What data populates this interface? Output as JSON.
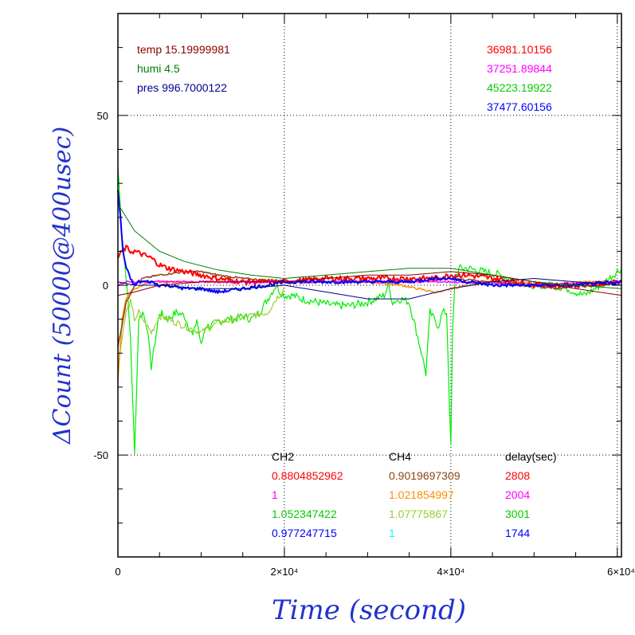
{
  "chart_data": {
    "type": "line",
    "title": "",
    "xlabel": "Time (second)",
    "ylabel": "ΔCount (50000@400usec)",
    "xlim": [
      0,
      60500
    ],
    "ylim": [
      -80,
      80
    ],
    "grid": true,
    "x_ticks": [
      {
        "value": 0,
        "label": "0"
      },
      {
        "value": 20000,
        "label": "2×10⁴"
      },
      {
        "value": 40000,
        "label": "4×10⁴"
      },
      {
        "value": 60000,
        "label": "6×10⁴"
      }
    ],
    "y_ticks": [
      {
        "value": -50,
        "label": "-50"
      },
      {
        "value": 0,
        "label": "0"
      },
      {
        "value": 50,
        "label": "50"
      }
    ],
    "env_labels": [
      {
        "text": "temp 15.19999981",
        "color": "#8b0000"
      },
      {
        "text": "humi 4.5",
        "color": "#008000"
      },
      {
        "text": "pres 996.7000122",
        "color": "#00008b"
      }
    ],
    "rate_labels": [
      {
        "text": "36981.10156",
        "color": "#ff0000"
      },
      {
        "text": "37251.89844",
        "color": "#ff00ff"
      },
      {
        "text": "45223.19922",
        "color": "#00cc00"
      },
      {
        "text": "37477.60156",
        "color": "#0000ff"
      }
    ],
    "table": {
      "headers": [
        "CH2",
        "CH4",
        "delay(sec)"
      ],
      "rows": [
        {
          "ch2": "0.8804852962",
          "ch2_color": "#ff0000",
          "ch4": "0.9019697309",
          "ch4_color": "#8b4513",
          "delay": "2808",
          "delay_color": "#ff0000"
        },
        {
          "ch2": "1",
          "ch2_color": "#ff00ff",
          "ch4": "1.021854997",
          "ch4_color": "#ff8c00",
          "delay": "2004",
          "delay_color": "#ff00ff"
        },
        {
          "ch2": "1.052347422",
          "ch2_color": "#00cc00",
          "ch4": "1.07775867",
          "ch4_color": "#9acd32",
          "delay": "3001",
          "delay_color": "#00cc00"
        },
        {
          "ch2": "0.977247715",
          "ch2_color": "#0000ff",
          "ch4": "1",
          "ch4_color": "#00ffff",
          "delay": "1744",
          "delay_color": "#0000ff"
        }
      ]
    },
    "series": [
      {
        "color": "#00ee00",
        "width": 1.2,
        "noise": 1.2,
        "x": [
          0,
          500,
          1000,
          1500,
          2000,
          2500,
          3000,
          3500,
          4000,
          5000,
          6000,
          7000,
          8000,
          9000,
          9500,
          10000,
          10500,
          11000,
          12000,
          13000,
          14000,
          15000,
          16000,
          17000,
          18000,
          19000,
          19500,
          20000,
          21000,
          22000,
          24000,
          26000,
          28000,
          30000,
          32000,
          32500,
          33000,
          34000,
          35000,
          36000,
          36500,
          37000,
          37500,
          38000,
          38500,
          39000,
          39500,
          40000,
          40200,
          40500,
          41000,
          42000,
          44000,
          46000,
          48000,
          50000,
          52000,
          54000,
          56000,
          58000,
          60000,
          60500
        ],
        "y": [
          35,
          15,
          2,
          -15,
          -50,
          -10,
          -8,
          -12,
          -24,
          -8,
          -10,
          -8,
          -9,
          -15,
          -10,
          -18,
          -12,
          -12,
          -11,
          -10,
          -10,
          -9,
          -10,
          -8,
          -4,
          0,
          -2,
          -3,
          -3,
          -4,
          -5,
          -6,
          -6,
          -5,
          -3,
          0,
          -5,
          -4,
          -5,
          -15,
          -20,
          -26,
          -8,
          -10,
          -12,
          -8,
          -8,
          -48,
          -15,
          2,
          5,
          5,
          4,
          3,
          1,
          0,
          0,
          -1,
          -3,
          0,
          4,
          5
        ]
      },
      {
        "color": "#9acd32",
        "width": 1.2,
        "noise": 1.0,
        "x": [
          0,
          500,
          1000,
          1500,
          2000,
          2500,
          3000,
          4000,
          5000,
          6000,
          8000,
          10000,
          12000,
          14000,
          16000,
          18000,
          19000,
          20000
        ],
        "y": [
          -25,
          -15,
          -8,
          -5,
          -10,
          -8,
          -10,
          -14,
          -9,
          -10,
          -12,
          -14,
          -11,
          -10,
          -9,
          -8,
          -4,
          -1
        ]
      },
      {
        "color": "#ff8c00",
        "width": 1.5,
        "noise": 0.3,
        "x": [
          0,
          500,
          1000,
          1500,
          2000,
          3000,
          4000,
          6000,
          8000,
          10000,
          14000,
          20000,
          26000,
          30000,
          34000,
          36000,
          38000,
          39000,
          40000,
          42000,
          44000,
          48000,
          52000,
          56000,
          60500
        ],
        "y": [
          -28,
          -10,
          -4,
          -2,
          -1,
          0,
          1,
          1,
          1,
          1,
          1,
          1,
          1,
          1,
          0,
          -1,
          -2,
          -2,
          -1,
          0,
          1,
          1,
          0,
          1,
          1
        ]
      },
      {
        "color": "#8b4513",
        "width": 1.5,
        "noise": 0.3,
        "x": [
          0,
          1000,
          2000,
          3000,
          5000,
          8000,
          10000,
          12000,
          15000,
          20000,
          25000,
          30000,
          35000,
          40000,
          45000,
          50000,
          53000,
          55000,
          58000,
          60500
        ],
        "y": [
          -18,
          -5,
          0,
          2,
          3,
          4,
          4,
          3,
          2,
          1,
          1,
          1,
          1,
          2,
          1,
          0,
          -1,
          0,
          0,
          1
        ]
      },
      {
        "color": "#ff0000",
        "width": 2,
        "noise": 0.8,
        "x": [
          0,
          500,
          1000,
          1500,
          2000,
          3000,
          4000,
          5000,
          6000,
          8000,
          10000,
          12000,
          15000,
          18000,
          20000,
          25000,
          30000,
          35000,
          38000,
          40000,
          42000,
          45000,
          48000,
          50000,
          55000,
          60500
        ],
        "y": [
          8,
          10,
          11,
          10,
          10,
          9,
          8,
          6,
          5,
          4,
          3,
          2,
          1,
          1,
          1,
          2,
          2,
          2,
          2,
          3,
          3,
          2,
          1,
          0,
          0,
          1
        ]
      },
      {
        "color": "#ff00ff",
        "width": 1.5,
        "noise": 0.3,
        "x": [
          0,
          1000,
          2000,
          4000,
          8000,
          12000,
          20000,
          30000,
          40000,
          50000,
          60500
        ],
        "y": [
          0,
          1,
          1,
          1,
          1,
          1,
          1,
          1,
          1,
          0,
          1
        ]
      },
      {
        "color": "#0000ff",
        "width": 2,
        "noise": 0.5,
        "x": [
          0,
          300,
          600,
          1000,
          1500,
          2000,
          2500,
          3000,
          4000,
          5000,
          6000,
          8000,
          10000,
          12000,
          15000,
          18000,
          20000,
          25000,
          30000,
          35000,
          38000,
          40000,
          42000,
          45000,
          48000,
          50000,
          55000,
          60500
        ],
        "y": [
          28,
          20,
          10,
          5,
          2,
          0,
          1,
          1,
          1,
          0,
          0,
          -1,
          -1,
          -2,
          -1,
          0,
          1,
          1,
          1,
          1,
          2,
          2,
          1,
          0,
          0,
          0,
          0,
          1
        ]
      },
      {
        "color": "#008000",
        "width": 1,
        "noise": 0,
        "x": [
          0,
          2000,
          5000,
          8000,
          12000,
          16000,
          20000,
          25000,
          30000,
          35000,
          40000,
          45000,
          50000,
          55000,
          60500
        ],
        "y": [
          24,
          16,
          10,
          7,
          4.5,
          3,
          2,
          3,
          4,
          5,
          5,
          3,
          1,
          0,
          -1
        ]
      },
      {
        "color": "#800000",
        "width": 1,
        "noise": 0,
        "x": [
          0,
          2000,
          5000,
          10000,
          15000,
          20000,
          25000,
          30000,
          35000,
          40000,
          45000,
          50000,
          55000,
          60500
        ],
        "y": [
          -3,
          -2,
          0,
          1,
          1,
          1,
          2,
          3,
          3,
          4,
          3,
          1,
          -1,
          -3
        ]
      },
      {
        "color": "#000080",
        "width": 1,
        "noise": 0,
        "x": [
          0,
          2000,
          5000,
          10000,
          15000,
          20000,
          25000,
          30000,
          35000,
          40000,
          45000,
          50000,
          55000,
          60500
        ],
        "y": [
          1,
          0,
          0,
          -1,
          -1,
          0,
          -2,
          -4,
          -4,
          -1,
          1,
          2,
          1,
          0
        ]
      }
    ]
  }
}
